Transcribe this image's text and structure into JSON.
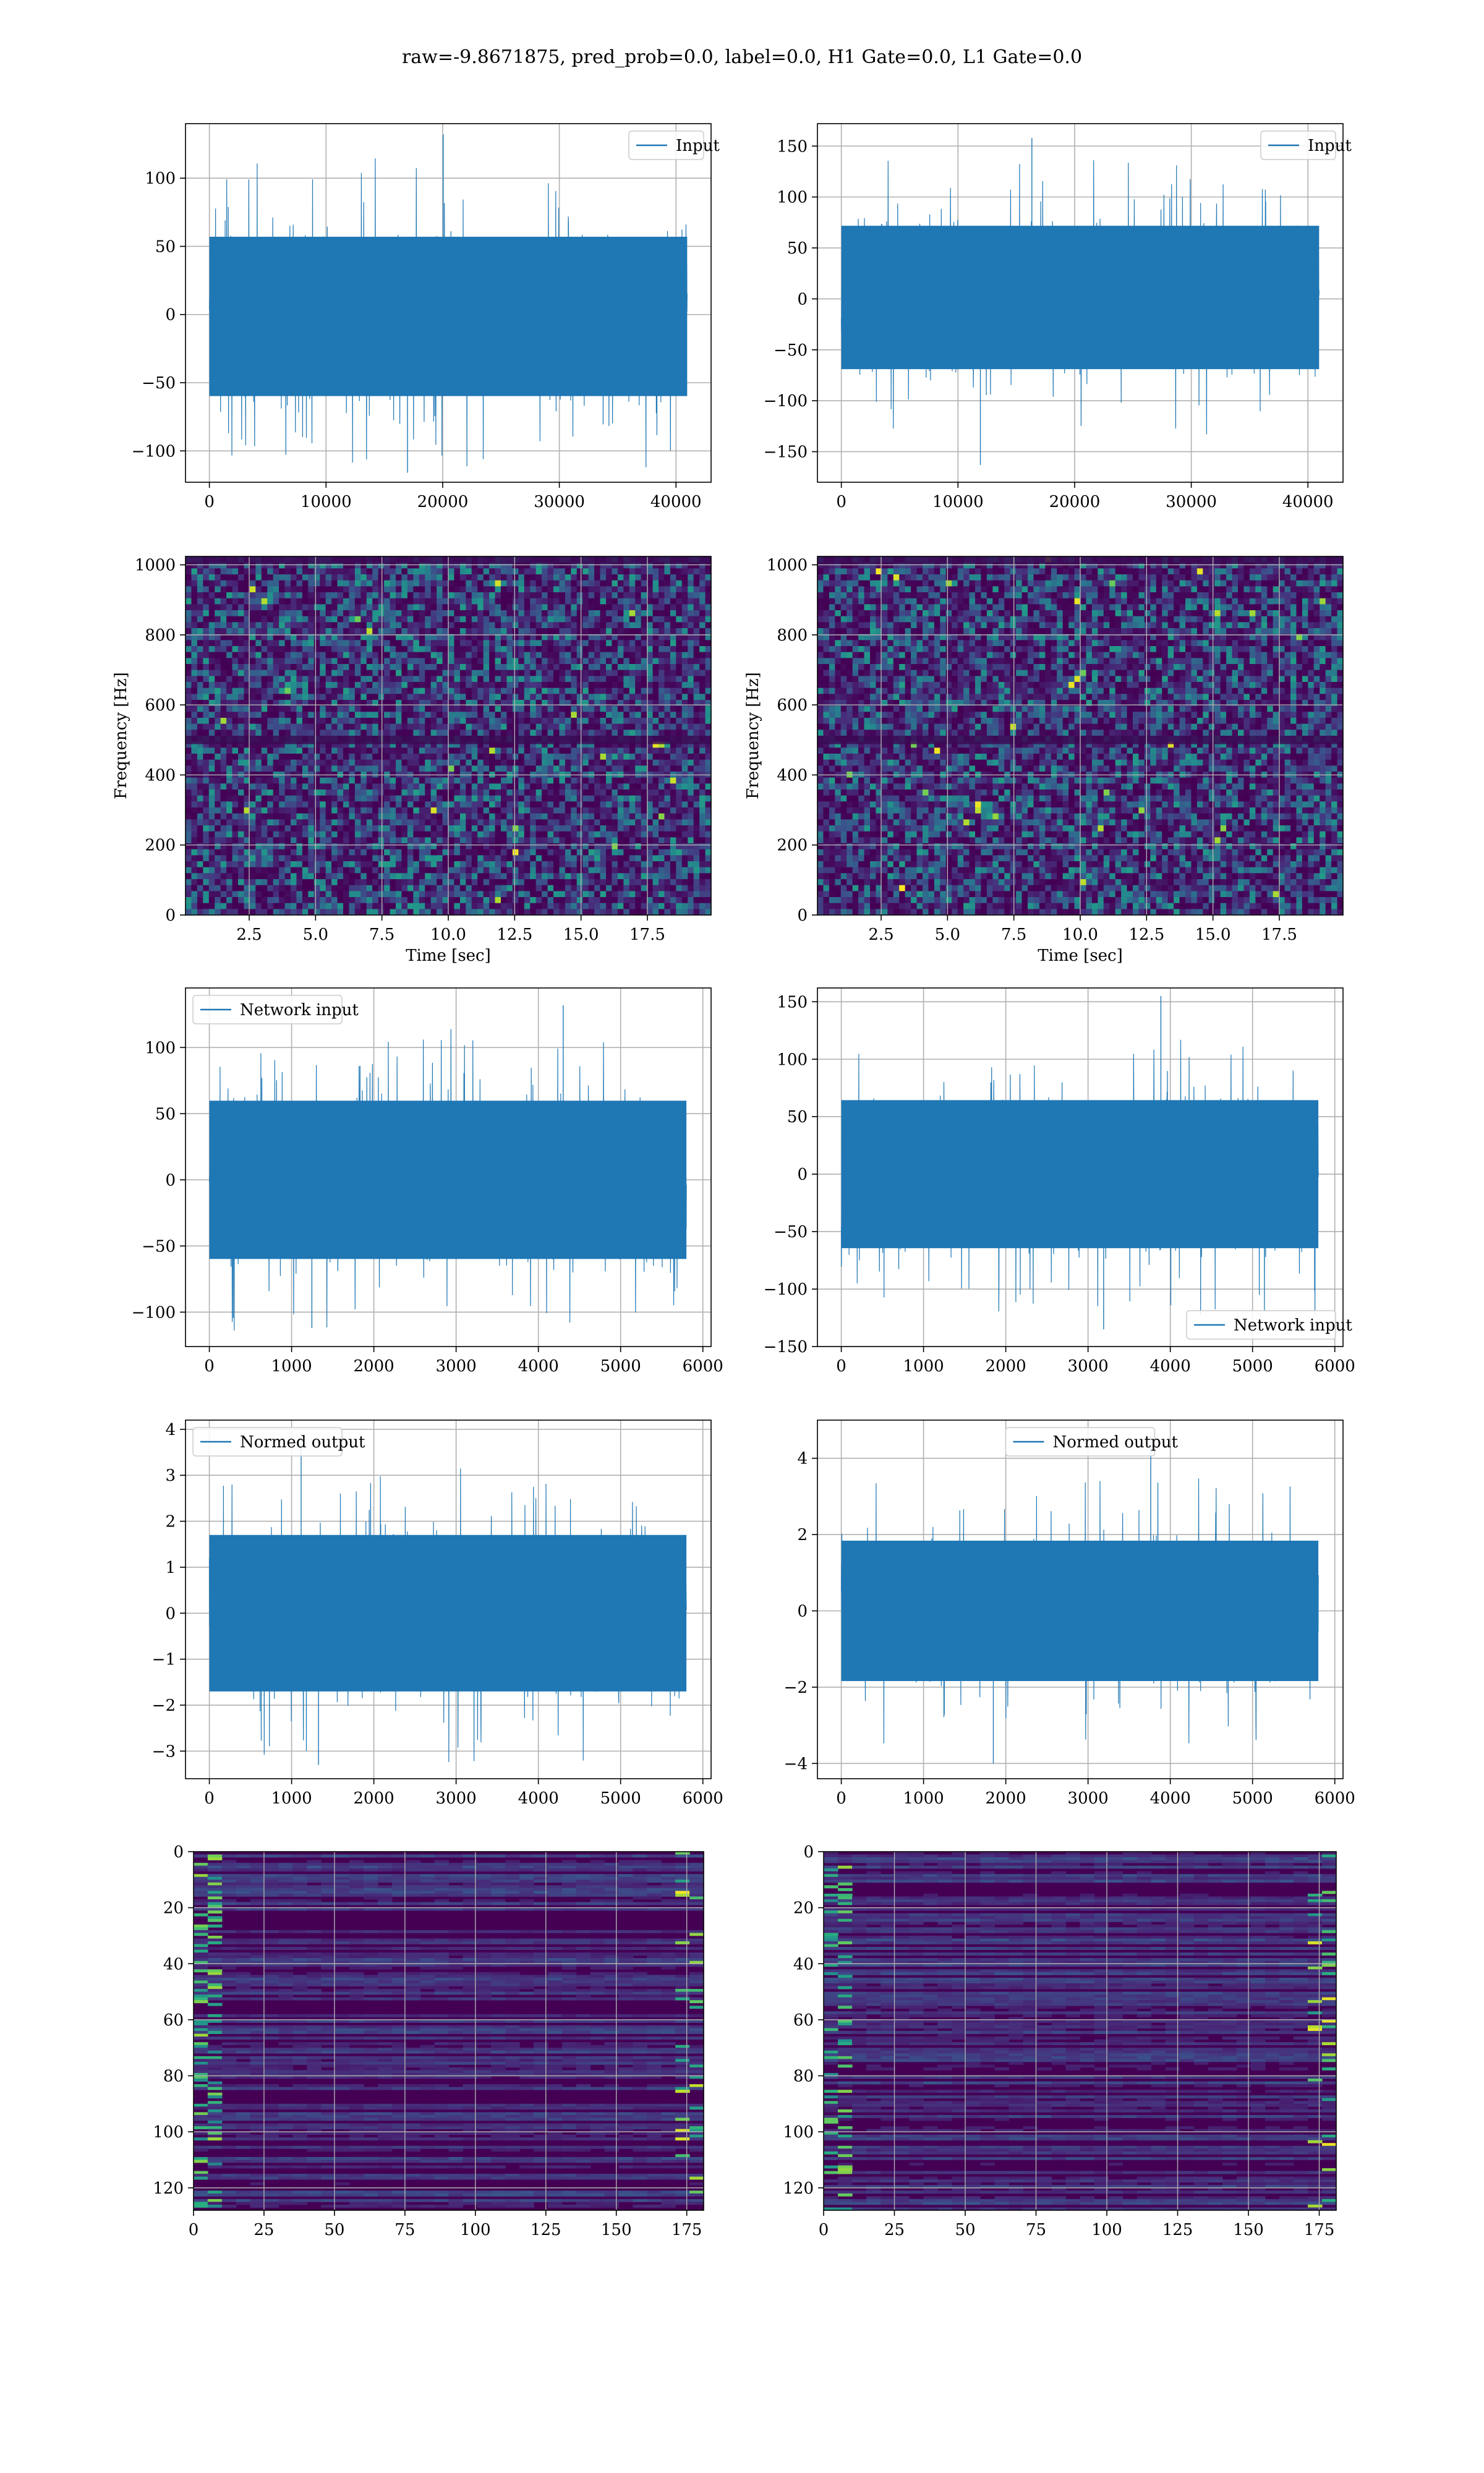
{
  "figure": {
    "suptitle": "raw=-9.8671875, pred_prob=0.0, label=0.0, H1 Gate=0.0, L1 Gate=0.0"
  },
  "colors": {
    "line": "#1f77b4",
    "grid": "#b0b0b0",
    "spine": "#000000",
    "viridis": [
      "#440154",
      "#472d7b",
      "#3b528b",
      "#2c728e",
      "#21918c",
      "#28ae80",
      "#5ec962",
      "#addc30",
      "#fde725"
    ]
  },
  "chart_data": [
    {
      "id": "input_h1",
      "type": "line",
      "xlabel": "",
      "ylabel": "",
      "xlim": [
        -2048,
        43008
      ],
      "ylim": [
        -123,
        140
      ],
      "xticks": [
        0,
        10000,
        20000,
        30000,
        40000
      ],
      "yticks": [
        -100,
        -50,
        0,
        50,
        100
      ],
      "legend": {
        "label": "Input",
        "loc": "upper right"
      },
      "series": [
        {
          "name": "Input",
          "x_range": [
            0,
            40959
          ],
          "band": [
            -65,
            62
          ],
          "spikes": [
            [
              -116,
              132
            ]
          ]
        }
      ]
    },
    {
      "id": "input_l1",
      "type": "line",
      "xlabel": "",
      "ylabel": "",
      "xlim": [
        -2048,
        43008
      ],
      "ylim": [
        -180,
        172
      ],
      "xticks": [
        0,
        10000,
        20000,
        30000,
        40000
      ],
      "yticks": [
        -150,
        -100,
        -50,
        0,
        50,
        100,
        150
      ],
      "legend": {
        "label": "Input",
        "loc": "upper right"
      },
      "series": [
        {
          "name": "Input",
          "x_range": [
            0,
            40959
          ],
          "band": [
            -75,
            78
          ],
          "spikes": [
            [
              -163,
              158
            ]
          ]
        }
      ]
    },
    {
      "id": "spec_h1",
      "type": "heatmap",
      "xlabel": "Time [sec]",
      "ylabel": "Frequency [Hz]",
      "xlim": [
        0.1,
        19.9
      ],
      "ylim": [
        0,
        1024
      ],
      "xticks": [
        2.5,
        5.0,
        7.5,
        10.0,
        12.5,
        15.0,
        17.5
      ],
      "xticklabels": [
        "2.5",
        "5.0",
        "7.5",
        "10.0",
        "12.5",
        "15.0",
        "17.5"
      ],
      "yticks": [
        0,
        200,
        400,
        600,
        800,
        1000
      ],
      "colormap": "viridis",
      "dark_bands_hz": [
        500,
        1015
      ]
    },
    {
      "id": "spec_l1",
      "type": "heatmap",
      "xlabel": "Time [sec]",
      "ylabel": "Frequency [Hz]",
      "xlim": [
        0.1,
        19.9
      ],
      "ylim": [
        0,
        1024
      ],
      "xticks": [
        2.5,
        5.0,
        7.5,
        10.0,
        12.5,
        15.0,
        17.5
      ],
      "xticklabels": [
        "2.5",
        "5.0",
        "7.5",
        "10.0",
        "12.5",
        "15.0",
        "17.5"
      ],
      "yticks": [
        0,
        200,
        400,
        600,
        800,
        1000
      ],
      "colormap": "viridis",
      "dark_bands_hz": [
        500,
        1015
      ]
    },
    {
      "id": "netin_h1",
      "type": "line",
      "xlabel": "",
      "ylabel": "",
      "xlim": [
        -290,
        6100
      ],
      "ylim": [
        -126,
        145
      ],
      "xticks": [
        0,
        1000,
        2000,
        3000,
        4000,
        5000,
        6000
      ],
      "yticks": [
        -100,
        -50,
        0,
        50,
        100
      ],
      "legend": {
        "label": "Network input",
        "loc": "upper left"
      },
      "series": [
        {
          "name": "Network input",
          "x_range": [
            0,
            5800
          ],
          "band": [
            -65,
            65
          ],
          "spikes": [
            [
              -112,
              132
            ]
          ]
        }
      ]
    },
    {
      "id": "netin_l1",
      "type": "line",
      "xlabel": "",
      "ylabel": "",
      "xlim": [
        -290,
        6100
      ],
      "ylim": [
        -150,
        162
      ],
      "xticks": [
        0,
        1000,
        2000,
        3000,
        4000,
        5000,
        6000
      ],
      "yticks": [
        -150,
        -100,
        -50,
        0,
        50,
        100,
        150
      ],
      "legend": {
        "label": "Network input",
        "loc": "lower right"
      },
      "series": [
        {
          "name": "Network input",
          "x_range": [
            0,
            5800
          ],
          "band": [
            -70,
            70
          ],
          "spikes": [
            [
              -135,
              155
            ]
          ]
        }
      ]
    },
    {
      "id": "norm_h1",
      "type": "line",
      "xlabel": "",
      "ylabel": "",
      "xlim": [
        -290,
        6100
      ],
      "ylim": [
        -3.6,
        4.2
      ],
      "xticks": [
        0,
        1000,
        2000,
        3000,
        4000,
        5000,
        6000
      ],
      "yticks": [
        -3,
        -2,
        -1,
        0,
        1,
        2,
        3,
        4
      ],
      "legend": {
        "label": "Normed output",
        "loc": "upper left"
      },
      "series": [
        {
          "name": "Normed output",
          "x_range": [
            0,
            5800
          ],
          "band": [
            -1.85,
            1.85
          ],
          "spikes": [
            [
              -3.3,
              3.9
            ]
          ]
        }
      ]
    },
    {
      "id": "norm_l1",
      "type": "line",
      "xlabel": "",
      "ylabel": "",
      "xlim": [
        -290,
        6100
      ],
      "ylim": [
        -4.4,
        5.0
      ],
      "xticks": [
        0,
        1000,
        2000,
        3000,
        4000,
        5000,
        6000
      ],
      "yticks": [
        -4,
        -2,
        0,
        2,
        4
      ],
      "legend": {
        "label": "Normed output",
        "loc": "upper center"
      },
      "series": [
        {
          "name": "Normed output",
          "x_range": [
            0,
            5800
          ],
          "band": [
            -2.0,
            2.0
          ],
          "spikes": [
            [
              -4.0,
              4.6
            ]
          ]
        }
      ]
    },
    {
      "id": "feat_h1",
      "type": "heatmap",
      "xlabel": "",
      "ylabel": "",
      "xlim": [
        0,
        181
      ],
      "ylim": [
        128,
        0
      ],
      "xticks": [
        0,
        25,
        50,
        75,
        100,
        125,
        150,
        175
      ],
      "yticks": [
        0,
        20,
        40,
        60,
        80,
        100,
        120
      ],
      "colormap": "viridis",
      "rows": 128,
      "cols": 181
    },
    {
      "id": "feat_l1",
      "type": "heatmap",
      "xlabel": "",
      "ylabel": "",
      "xlim": [
        0,
        181
      ],
      "ylim": [
        128,
        0
      ],
      "xticks": [
        0,
        25,
        50,
        75,
        100,
        125,
        150,
        175
      ],
      "yticks": [
        0,
        20,
        40,
        60,
        80,
        100,
        120
      ],
      "colormap": "viridis",
      "rows": 128,
      "cols": 181
    }
  ]
}
